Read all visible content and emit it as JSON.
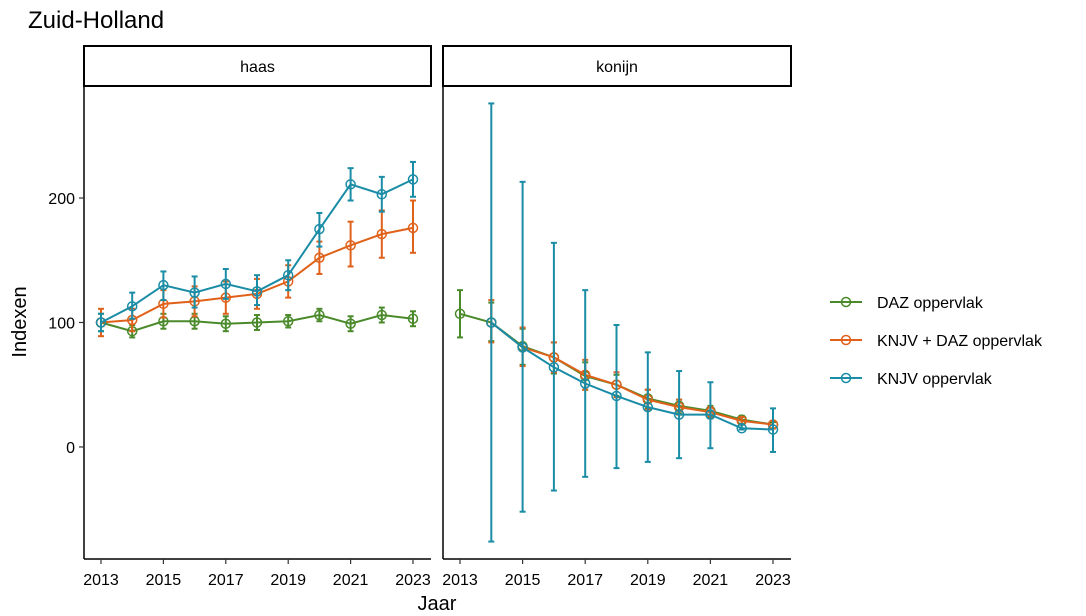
{
  "chart_data": {
    "type": "line",
    "title": "Zuid-Holland",
    "xlabel": "Jaar",
    "ylabel": "Indexen",
    "xlim": [
      2013,
      2023
    ],
    "ylim": [
      -90,
      290
    ],
    "x_ticks": [
      2013,
      2015,
      2017,
      2019,
      2021,
      2023
    ],
    "y_ticks": [
      0,
      100,
      200
    ],
    "grid": false,
    "legend_position": "right",
    "legend": [
      {
        "name": "DAZ oppervlak",
        "color": "#4a8a2a"
      },
      {
        "name": "KNJV + DAZ oppervlak",
        "color": "#e0611a"
      },
      {
        "name": "KNJV oppervlak",
        "color": "#1a8ca6"
      }
    ],
    "panels": [
      {
        "label": "haas",
        "series": [
          {
            "name": "DAZ oppervlak",
            "x": [
              2013,
              2014,
              2015,
              2016,
              2017,
              2018,
              2019,
              2020,
              2021,
              2022,
              2023
            ],
            "y": [
              100,
              93,
              101,
              101,
              99,
              100,
              101,
              106,
              99,
              106,
              103
            ],
            "lower": [
              93,
              88,
              95,
              95,
              93,
              94,
              96,
              101,
              93,
              100,
              97
            ],
            "upper": [
              107,
              98,
              107,
              107,
              105,
              106,
              106,
              111,
              105,
              112,
              109
            ]
          },
          {
            "name": "KNJV + DAZ oppervlak",
            "x": [
              2013,
              2014,
              2015,
              2016,
              2017,
              2018,
              2019,
              2020,
              2021,
              2022,
              2023
            ],
            "y": [
              100,
              102,
              115,
              117,
              120,
              123,
              133,
              152,
              162,
              171,
              176
            ],
            "lower": [
              89,
              93,
              104,
              105,
              107,
              111,
              120,
              139,
              145,
              152,
              156
            ],
            "upper": [
              111,
              111,
              126,
              129,
              133,
              135,
              146,
              165,
              181,
              190,
              198
            ]
          },
          {
            "name": "KNJV oppervlak",
            "x": [
              2013,
              2014,
              2015,
              2016,
              2017,
              2018,
              2019,
              2020,
              2021,
              2022,
              2023
            ],
            "y": [
              100,
              113,
              130,
              124,
              131,
              125,
              138,
              175,
              211,
              203,
              215
            ],
            "lower": [
              93,
              103,
              118,
              112,
              119,
              114,
              126,
              161,
              198,
              189,
              201
            ],
            "upper": [
              107,
              124,
              141,
              137,
              143,
              138,
              150,
              188,
              224,
              217,
              229
            ]
          }
        ]
      },
      {
        "label": "konijn",
        "series": [
          {
            "name": "DAZ oppervlak",
            "x": [
              2013,
              2014,
              2015,
              2016,
              2017,
              2018,
              2019,
              2020,
              2021,
              2022,
              2023
            ],
            "y": [
              107,
              100,
              81,
              72,
              57,
              50,
              39,
              33,
              29,
              22,
              18
            ],
            "lower": [
              88,
              85,
              66,
              59,
              46,
              41,
              31,
              27,
              24,
              18,
              15
            ],
            "upper": [
              126,
              116,
              95,
              84,
              68,
              58,
              46,
              38,
              33,
              25,
              20
            ]
          },
          {
            "name": "KNJV + DAZ oppervlak",
            "x": [
              2014,
              2015,
              2016,
              2017,
              2018,
              2019,
              2020,
              2021,
              2022,
              2023
            ],
            "y": [
              100,
              80,
              72,
              58,
              50,
              38,
              32,
              28,
              21,
              18
            ],
            "lower": [
              84,
              65,
              60,
              46,
              40,
              30,
              26,
              23,
              18,
              15
            ],
            "upper": [
              118,
              96,
              84,
              70,
              60,
              46,
              38,
              32,
              24,
              21
            ]
          },
          {
            "name": "KNJV oppervlak",
            "x": [
              2014,
              2015,
              2016,
              2017,
              2018,
              2019,
              2020,
              2021,
              2022,
              2023
            ],
            "y": [
              100,
              80,
              64,
              51,
              41,
              32,
              26,
              26,
              15,
              14
            ],
            "lower": [
              -76,
              -52,
              -35,
              -24,
              -17,
              -12,
              -9,
              -1,
              14,
              -4
            ],
            "upper": [
              276,
              213,
              164,
              126,
              98,
              76,
              61,
              52,
              18,
              31
            ]
          }
        ]
      }
    ]
  }
}
